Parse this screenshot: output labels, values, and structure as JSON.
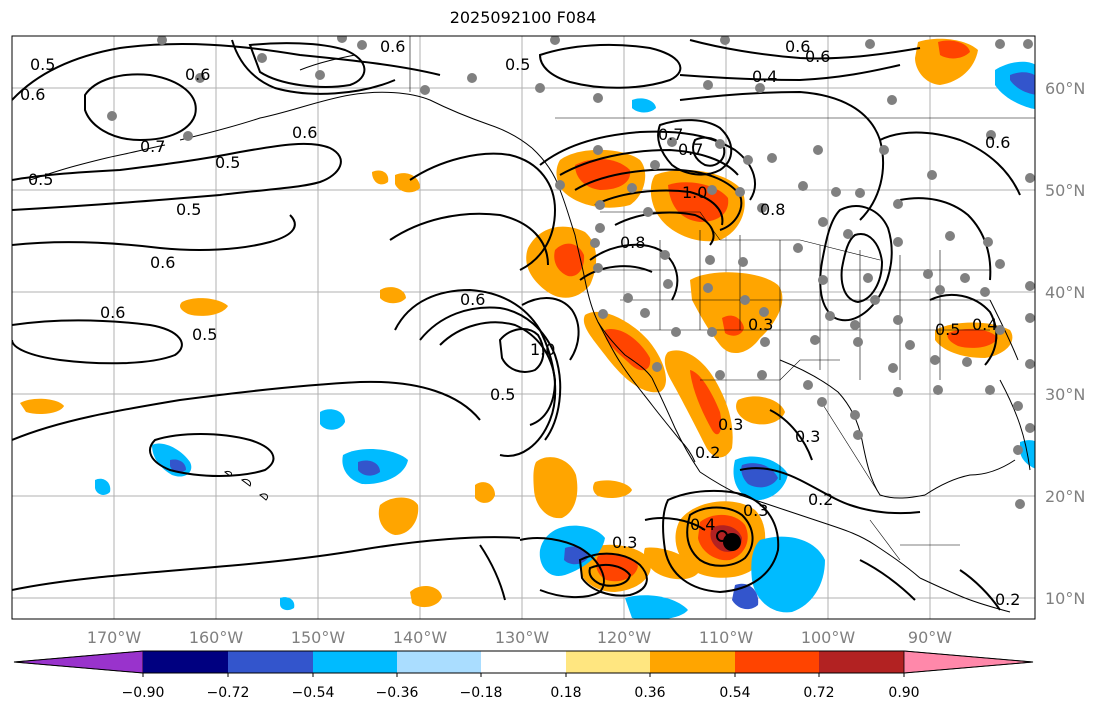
{
  "title": "2025092100 F084",
  "latitude_labels": [
    "60°N",
    "50°N",
    "40°N",
    "30°N",
    "20°N",
    "10°N"
  ],
  "longitude_labels": [
    "170°W",
    "160°W",
    "150°W",
    "140°W",
    "130°W",
    "120°W",
    "110°W",
    "100°W",
    "90°W"
  ],
  "colorbar": {
    "ticks": [
      "−0.90",
      "−0.72",
      "−0.54",
      "−0.36",
      "−0.18",
      "0.18",
      "0.36",
      "0.54",
      "0.72",
      "0.90"
    ],
    "colors": [
      "#9933cc",
      "#000080",
      "#3355cc",
      "#00bbff",
      "#aaddff",
      "#ffffff",
      "#ffe680",
      "#ffa500",
      "#ff4400",
      "#b22222",
      "#ff88aa"
    ]
  },
  "contour_labels": [
    "0.5",
    "0.6",
    "0.5",
    "0.7",
    "0.6",
    "0.5",
    "0.5",
    "0.6",
    "0.6",
    "0.6",
    "0.5",
    "0.6",
    "0.5",
    "0.6",
    "0.8",
    "1.0",
    "0.5",
    "0.6",
    "0.7",
    "1.0",
    "0.8",
    "0.7",
    "0.4",
    "0.6",
    "0.6",
    "0.5",
    "0.4",
    "0.3",
    "0.3",
    "0.2",
    "0.3",
    "0.2",
    "0.4",
    "0.3",
    "0.3",
    "0.2"
  ],
  "palette": {
    "land_border": "#000000",
    "grid": "#b0b0b0",
    "station_dot": "#808080",
    "storm_marker": "#000000"
  }
}
